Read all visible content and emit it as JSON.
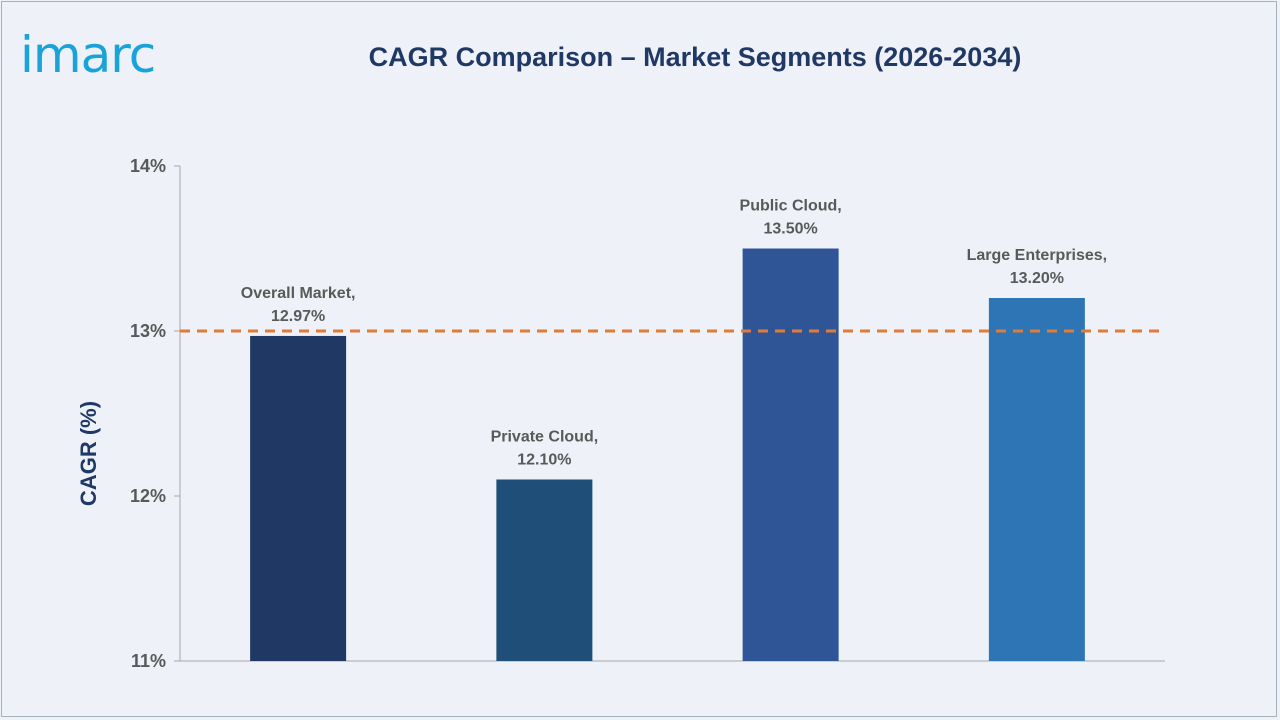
{
  "brand": {
    "logo_text": "imarc",
    "logo_color": "#1aa3d9"
  },
  "chart_data": {
    "type": "bar",
    "title": "CAGR Comparison – Market Segments (2026-2034)",
    "ylabel": "CAGR (%)",
    "xlabel": "",
    "categories": [
      "Overall Market",
      "Private Cloud",
      "Public Cloud",
      "Large Enterprises"
    ],
    "values": [
      12.97,
      12.1,
      13.5,
      13.2
    ],
    "data_labels": [
      [
        "Overall Market,",
        "12.97%"
      ],
      [
        "Private Cloud,",
        "12.10%"
      ],
      [
        "Public Cloud,",
        "13.50%"
      ],
      [
        "Large Enterprises,",
        "13.20%"
      ]
    ],
    "bar_colors": [
      "#1f3864",
      "#1f4e79",
      "#2f5597",
      "#2e75b6"
    ],
    "ylim": [
      11,
      14
    ],
    "yticks": [
      11,
      12,
      13,
      14
    ],
    "ytick_labels": [
      "11%",
      "12%",
      "13%",
      "14%"
    ],
    "reference_line": {
      "value": 13,
      "style": "dashed",
      "color": "#e07b39"
    },
    "grid": false,
    "legend": "none"
  }
}
